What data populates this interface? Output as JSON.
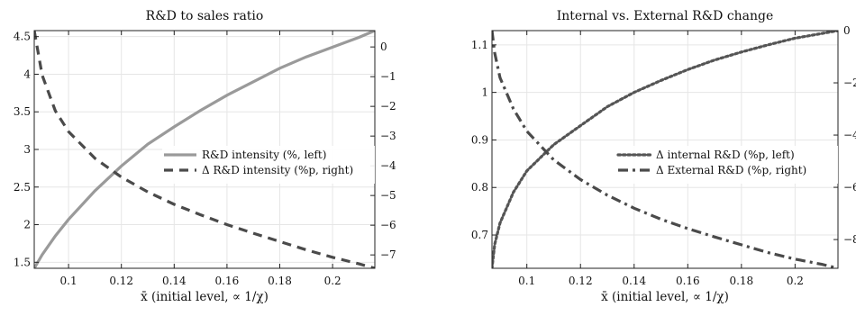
{
  "chart_data": [
    {
      "type": "line",
      "title": "R&D to sales ratio",
      "xlabel": "x̄ (initial level, ∝ 1/χ)",
      "xlim": [
        0.087,
        0.216
      ],
      "ylim": [
        1.42,
        4.58
      ],
      "y2lim": [
        -7.45,
        0.55
      ],
      "xticks": [
        0.1,
        0.12,
        0.14,
        0.16,
        0.18,
        0.2
      ],
      "yticks": [
        1.5,
        2,
        2.5,
        3,
        3.5,
        4,
        4.5
      ],
      "y2ticks": [
        0,
        -1,
        -2,
        -3,
        -4,
        -5,
        -6,
        -7
      ],
      "grid": true,
      "legend_position": "center-right",
      "x": [
        0.087,
        0.09,
        0.095,
        0.1,
        0.11,
        0.12,
        0.13,
        0.14,
        0.15,
        0.16,
        0.17,
        0.18,
        0.19,
        0.2,
        0.21,
        0.216
      ],
      "series": [
        {
          "name": "R&D intensity (%, left)",
          "axis": "left",
          "color": "#9a9a9a",
          "dash": "solid",
          "values": [
            1.42,
            1.6,
            1.85,
            2.07,
            2.45,
            2.78,
            3.07,
            3.3,
            3.52,
            3.72,
            3.9,
            4.08,
            4.23,
            4.36,
            4.49,
            4.58
          ]
        },
        {
          "name": "Δ R&D intensity (%p, right)",
          "axis": "right",
          "color": "#4a4a4a",
          "dash": "dashed",
          "values": [
            0.55,
            -0.95,
            -2.15,
            -2.85,
            -3.75,
            -4.38,
            -4.88,
            -5.3,
            -5.65,
            -5.98,
            -6.27,
            -6.55,
            -6.83,
            -7.08,
            -7.3,
            -7.45
          ]
        }
      ]
    },
    {
      "type": "line",
      "title": "Internal vs. External R&D change",
      "xlabel": "x̄ (initial level, ∝ 1/χ)",
      "xlim": [
        0.087,
        0.216
      ],
      "ylim": [
        0.63,
        1.13
      ],
      "y2lim": [
        -9.1,
        0
      ],
      "xticks": [
        0.1,
        0.12,
        0.14,
        0.16,
        0.18,
        0.2
      ],
      "yticks": [
        0.7,
        0.8,
        0.9,
        1,
        1.1
      ],
      "y2ticks": [
        0,
        -2,
        -4,
        -6,
        -8
      ],
      "grid": true,
      "legend_position": "center-right",
      "x": [
        0.087,
        0.088,
        0.09,
        0.095,
        0.1,
        0.11,
        0.12,
        0.13,
        0.14,
        0.15,
        0.16,
        0.17,
        0.18,
        0.19,
        0.2,
        0.21,
        0.216
      ],
      "series": [
        {
          "name": "Δ internal R&D (%p, left)",
          "axis": "left",
          "color": "#555555",
          "dash": "dotted",
          "values": [
            0.63,
            0.68,
            0.725,
            0.79,
            0.835,
            0.89,
            0.93,
            0.97,
            1.0,
            1.025,
            1.048,
            1.068,
            1.085,
            1.1,
            1.114,
            1.124,
            1.13
          ]
        },
        {
          "name": "Δ External R&D (%p, right)",
          "axis": "right",
          "color": "#4a4a4a",
          "dash": "dashdot",
          "values": [
            0,
            -0.85,
            -1.8,
            -3.0,
            -3.85,
            -4.95,
            -5.7,
            -6.3,
            -6.8,
            -7.22,
            -7.58,
            -7.9,
            -8.2,
            -8.5,
            -8.75,
            -8.95,
            -9.1
          ]
        }
      ]
    }
  ]
}
